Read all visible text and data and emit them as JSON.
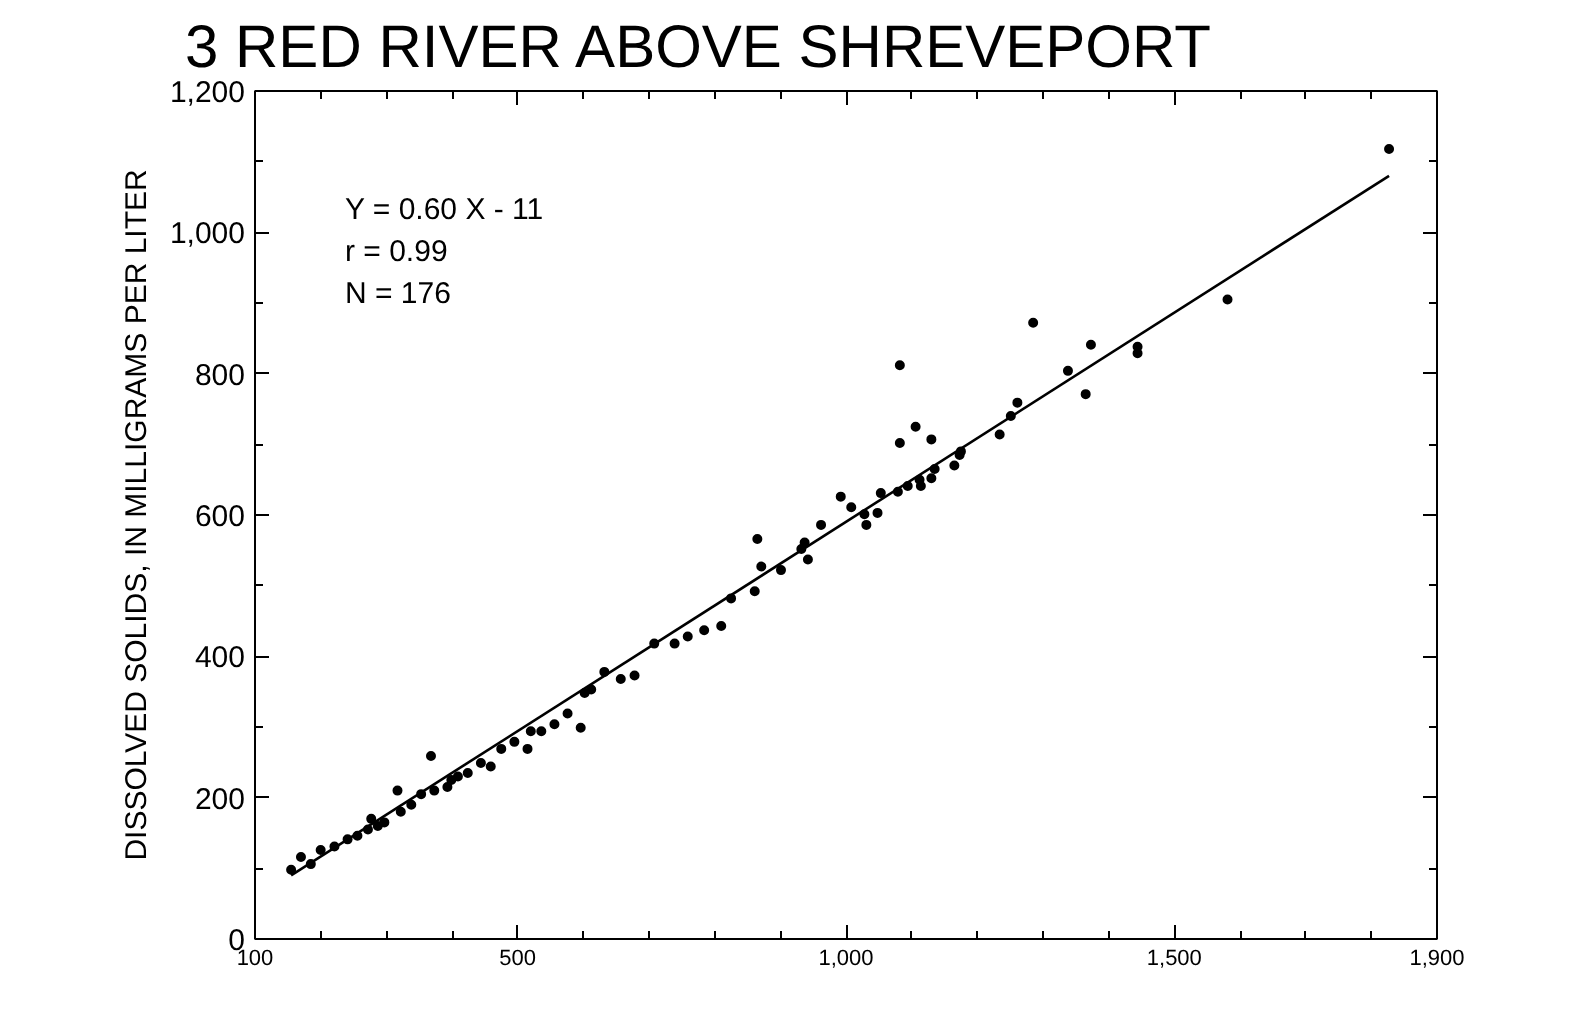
{
  "chart_data": {
    "type": "scatter",
    "title": "3  RED RIVER ABOVE SHREVEPORT",
    "ylabel": "DISSOLVED SOLIDS, IN MILLIGRAMS PER LITER",
    "annotations": [
      "Y = 0.60 X - 11",
      "r = 0.99",
      "N = 176"
    ],
    "xlim": [
      100,
      1900
    ],
    "xticks": [
      100,
      500,
      {
        "value": 1000,
        "label": "1,000"
      },
      {
        "value": 1500,
        "label": "1,500"
      },
      {
        "value": 1900,
        "label": "1,900"
      }
    ],
    "ylim": [
      0,
      1200
    ],
    "yticks": [
      0,
      200,
      400,
      600,
      800,
      {
        "value": 1000,
        "label": "1,000"
      },
      {
        "value": 1200,
        "label": "1,200"
      }
    ],
    "grid": false,
    "series": [
      {
        "marker": "circle",
        "color": "#000000",
        "x": [
          155,
          170,
          185,
          200,
          221,
          241,
          256,
          272,
          277,
          287,
          297,
          317,
          322,
          338,
          353,
          368,
          373,
          393,
          399,
          409,
          424,
          444,
          459,
          475,
          495,
          515,
          520,
          536,
          556,
          576,
          596,
          602,
          612,
          632,
          657,
          678,
          708,
          739,
          759,
          784,
          810,
          825,
          861,
          871,
          865,
          901,
          932,
          937,
          942,
          962,
          992,
          1008,
          1028,
          1031,
          1048,
          1053,
          1079,
          1082,
          1082,
          1094,
          1106,
          1112,
          1114,
          1130,
          1130,
          1135,
          1165,
          1173,
          1175,
          1234,
          1251,
          1261,
          1285,
          1338,
          1365,
          1373,
          1444,
          1444,
          1581,
          1827
        ],
        "values": [
          98,
          116,
          106,
          126,
          131,
          141,
          146,
          155,
          170,
          160,
          165,
          210,
          180,
          190,
          205,
          259,
          210,
          215,
          225,
          230,
          235,
          249,
          244,
          269,
          279,
          269,
          294,
          294,
          304,
          319,
          299,
          348,
          353,
          378,
          368,
          373,
          418,
          418,
          428,
          437,
          443,
          482,
          492,
          527,
          566,
          522,
          552,
          561,
          537,
          586,
          626,
          611,
          601,
          586,
          603,
          631,
          633,
          702,
          812,
          641,
          725,
          650,
          641,
          707,
          652,
          665,
          670,
          685,
          690,
          714,
          740,
          759,
          872,
          804,
          771,
          841,
          838,
          829,
          905,
          1118
        ]
      },
      {
        "type": "line",
        "color": "#000000",
        "x": [
          155,
          1827
        ],
        "values": [
          90,
          1080
        ]
      }
    ]
  }
}
